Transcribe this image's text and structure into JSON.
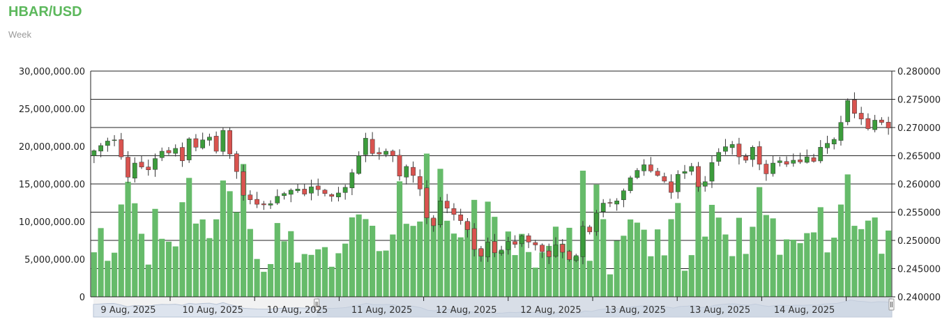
{
  "header": {
    "title": "HBAR/USD",
    "subtitle": "Week"
  },
  "colors": {
    "title": "#5cb85c",
    "up": "#3c9c3c",
    "down": "#d9534f",
    "volume": "#66bb6a",
    "grid": "#222222",
    "navigator_mask": "#c9d3e0"
  },
  "chart_data": {
    "type": "candlestick",
    "title": "HBAR/USD",
    "subtitle": "Week",
    "y_left": {
      "label": "",
      "ticks": [
        "0",
        "5,000,000.00",
        "10,000,000.00",
        "15,000,000.00",
        "20,000,000.00",
        "25,000,000.00",
        "30,000,000.00"
      ],
      "range": [
        0,
        30000000
      ]
    },
    "y_right": {
      "label": "",
      "ticks": [
        "0.240000",
        "0.245000",
        "0.250000",
        "0.255000",
        "0.260000",
        "0.265000",
        "0.270000",
        "0.275000",
        "0.280000"
      ],
      "range": [
        0.24,
        0.28
      ]
    },
    "x_ticks": [
      "9 Aug, 2025",
      "10 Aug, 2025",
      "10 Aug, 2025",
      "11 Aug, 2025",
      "12 Aug, 2025",
      "12 Aug, 2025",
      "13 Aug, 2025",
      "13 Aug, 2025",
      "14 Aug, 2025"
    ],
    "grid": true,
    "navigator": {
      "visible": true,
      "selected_fraction": [
        0.28,
        1.0
      ]
    },
    "close": [
      0.2659,
      0.2668,
      0.2676,
      0.2678,
      0.2648,
      0.2612,
      0.2637,
      0.263,
      0.2625,
      0.2645,
      0.2658,
      0.2655,
      0.2663,
      0.2641,
      0.268,
      0.2665,
      0.2678,
      0.2683,
      0.2658,
      0.2695,
      0.2653,
      0.2622,
      0.258,
      0.2572,
      0.2564,
      0.2563,
      0.2565,
      0.2578,
      0.2583,
      0.2589,
      0.2591,
      0.2582,
      0.2595,
      0.259,
      0.2583,
      0.2578,
      0.2584,
      0.2594,
      0.262,
      0.265,
      0.2681,
      0.2654,
      0.2653,
      0.2658,
      0.265,
      0.2614,
      0.2631,
      0.2615,
      0.2591,
      0.254,
      0.2526,
      0.257,
      0.2557,
      0.2546,
      0.2535,
      0.2519,
      0.2484,
      0.2472,
      0.2497,
      0.2478,
      0.2483,
      0.2498,
      0.2493,
      0.2508,
      0.2497,
      0.2492,
      0.248,
      0.2471,
      0.2492,
      0.2479,
      0.2466,
      0.2473,
      0.2525,
      0.2515,
      0.2549,
      0.2566,
      0.2566,
      0.257,
      0.2588,
      0.2611,
      0.2624,
      0.2634,
      0.2623,
      0.2615,
      0.2605,
      0.2585,
      0.2617,
      0.2622,
      0.2631,
      0.2595,
      0.2604,
      0.2638,
      0.2656,
      0.2666,
      0.267,
      0.2648,
      0.2642,
      0.2665,
      0.2635,
      0.2618,
      0.2637,
      0.2641,
      0.2635,
      0.2642,
      0.2639,
      0.2648,
      0.264,
      0.2665,
      0.2672,
      0.2679,
      0.2709,
      0.2748,
      0.2725,
      0.2715,
      0.2698,
      0.2713,
      0.2709,
      0.2699
    ]
  }
}
